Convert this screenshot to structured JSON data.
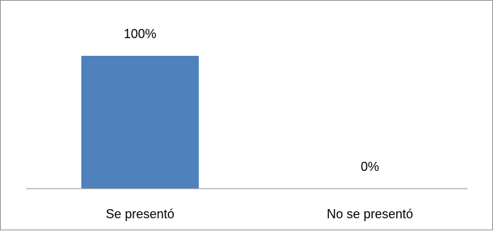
{
  "chart_data": {
    "type": "bar",
    "categories": [
      "Se presentó",
      "No se presentó"
    ],
    "values": [
      100,
      0
    ],
    "data_labels": [
      "100%",
      "0%"
    ],
    "title": "",
    "xlabel": "",
    "ylabel": "",
    "ylim": [
      0,
      100
    ],
    "grid": false,
    "legend": "none",
    "bar_color": "#4F81BD",
    "axis_color": "#8C8C8C"
  }
}
